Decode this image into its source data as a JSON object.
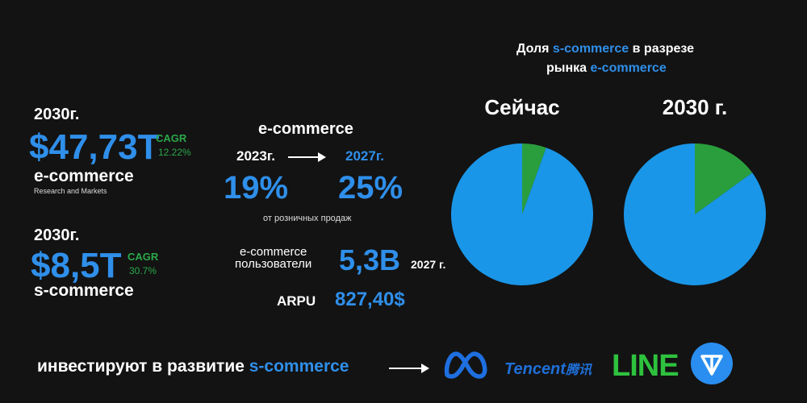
{
  "colors": {
    "background": "#131313",
    "blue": "#2f8fea",
    "green": "#2aa84a",
    "pie_blue": "#1a96e8",
    "pie_green": "#2a9e3d"
  },
  "left": {
    "ecom": {
      "year": "2030г.",
      "value": "$47,73T",
      "label": "e-commerce",
      "source": "Research and Markets",
      "cagr_label": "CAGR",
      "cagr_value": "12.22%"
    },
    "scom": {
      "year": "2030г.",
      "value": "$8,5T",
      "label": "s-commerce",
      "cagr_label": "CAGR",
      "cagr_value": "30.7%"
    }
  },
  "middle": {
    "title": "e-commerce",
    "year_from": "2023г.",
    "year_to": "2027г.",
    "value_from": "19%",
    "value_to": "25%",
    "share_note": "от розничных продаж",
    "users_label_1": "e-commerce",
    "users_label_2": "пользователи",
    "users_value": "5,3B",
    "users_year": "2027 г.",
    "arpu_label": "ARPU",
    "arpu_value": "827,40$"
  },
  "right": {
    "title_part1": "Доля ",
    "title_part2": "s-commerce",
    "title_part3": " в разрезе",
    "title_line2_part1": "рынка ",
    "title_line2_part2": "e-commerce"
  },
  "chart_data": [
    {
      "type": "pie",
      "title": "Сейчас",
      "slices": [
        {
          "name": "s-commerce",
          "value": 5.5,
          "color": "#2a9e3d"
        },
        {
          "name": "e-commerce",
          "value": 94.5,
          "color": "#1a96e8"
        }
      ]
    },
    {
      "type": "pie",
      "title": "2030 г.",
      "slices": [
        {
          "name": "s-commerce",
          "value": 15,
          "color": "#2a9e3d"
        },
        {
          "name": "e-commerce",
          "value": 85,
          "color": "#1a96e8"
        }
      ]
    }
  ],
  "bottom": {
    "text_part1": "инвестируют в развитие ",
    "text_part2": "s-commerce",
    "logos": {
      "meta": "meta-logo",
      "tencent": "Tencent",
      "tencent_cn": "腾讯",
      "line": "LINE",
      "ton": "ton-logo"
    }
  }
}
